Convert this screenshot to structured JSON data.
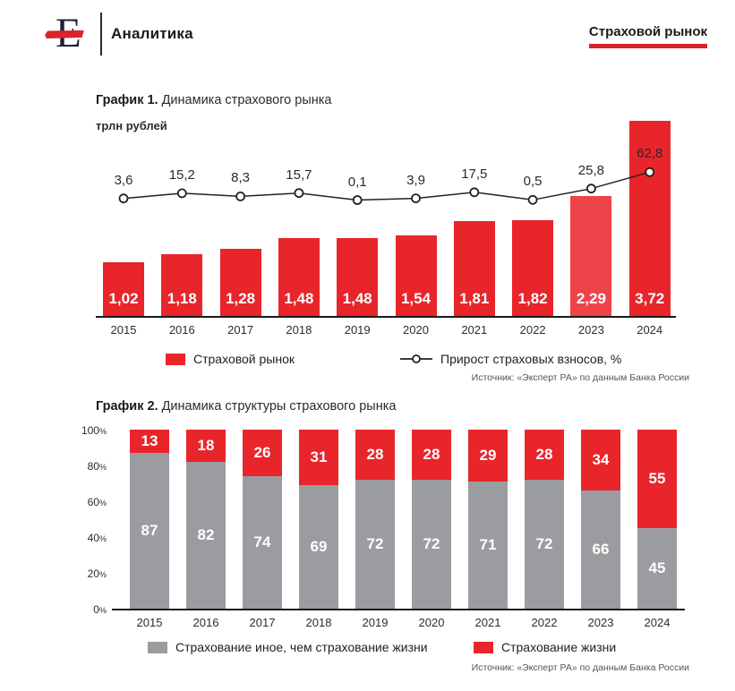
{
  "colors": {
    "red": "#e8252b",
    "red_highlight": "#ee4449",
    "gray": "#9b9c9f",
    "accent_underline": "#d8232a",
    "ink": "#1a1a1a",
    "line": "#222222"
  },
  "header": {
    "brand_letter": "E",
    "title": "Аналитика",
    "badge": "Страховой рынок"
  },
  "chart1": {
    "label_bold": "График 1.",
    "label_rest": " Динамика страхового рынка",
    "unit": "трлн рублей",
    "legend_bar": "Страховой рынок",
    "legend_line": "Прирост страховых взносов, %",
    "source": "Источник: «Эксперт РА» по данным Банка России"
  },
  "chart2": {
    "label_bold": "График 2.",
    "label_rest": " Динамика структуры страхового рынка",
    "legend_gray": "Страхование иное, чем страхование жизни",
    "legend_red": "Страхование жизни",
    "source": "Источник: «Эксперт РА» по данным Банка России"
  },
  "chart_data": [
    {
      "type": "bar",
      "title": "Динамика страхового рынка",
      "ylabel": "трлн рублей",
      "categories": [
        "2015",
        "2016",
        "2017",
        "2018",
        "2019",
        "2020",
        "2021",
        "2022",
        "2023",
        "2024"
      ],
      "highlight_index": 8,
      "legend_position": "bottom",
      "series": [
        {
          "name": "Страховой рынок",
          "type": "bar",
          "unit": "трлн рублей",
          "values": [
            1.02,
            1.18,
            1.28,
            1.48,
            1.48,
            1.54,
            1.81,
            1.82,
            2.29,
            3.72
          ],
          "labels": [
            "1,02",
            "1,18",
            "1,28",
            "1,48",
            "1,48",
            "1,54",
            "1,81",
            "1,82",
            "2,29",
            "3,72"
          ]
        },
        {
          "name": "Прирост страховых взносов, %",
          "type": "line",
          "unit": "%",
          "values": [
            3.6,
            15.2,
            8.3,
            15.7,
            0.1,
            3.9,
            17.5,
            0.5,
            25.8,
            62.8
          ],
          "labels": [
            "3,6",
            "15,2",
            "8,3",
            "15,7",
            "0,1",
            "3,9",
            "17,5",
            "0,5",
            "25,8",
            "62,8"
          ]
        }
      ],
      "source": "Источник: «Эксперт РА» по данным Банка России"
    },
    {
      "type": "bar",
      "subtype": "stacked",
      "title": "Динамика структуры страхового рынка",
      "categories": [
        "2015",
        "2016",
        "2017",
        "2018",
        "2019",
        "2020",
        "2021",
        "2022",
        "2023",
        "2024"
      ],
      "ylim": [
        0,
        100
      ],
      "yticks": [
        {
          "v": 0,
          "label": "0"
        },
        {
          "v": 20,
          "label": "20"
        },
        {
          "v": 40,
          "label": "40"
        },
        {
          "v": 60,
          "label": "60"
        },
        {
          "v": 80,
          "label": "80"
        },
        {
          "v": 100,
          "label": "100"
        }
      ],
      "ytick_suffix": "%",
      "legend_position": "bottom",
      "series": [
        {
          "name": "Страхование иное, чем страхование жизни",
          "color_key": "gray",
          "values": [
            87,
            82,
            74,
            69,
            72,
            72,
            71,
            72,
            66,
            45
          ]
        },
        {
          "name": "Страхование жизни",
          "color_key": "red",
          "values": [
            13,
            18,
            26,
            31,
            28,
            28,
            29,
            28,
            34,
            55
          ]
        }
      ],
      "source": "Источник: «Эксперт РА» по данным Банка России"
    }
  ]
}
